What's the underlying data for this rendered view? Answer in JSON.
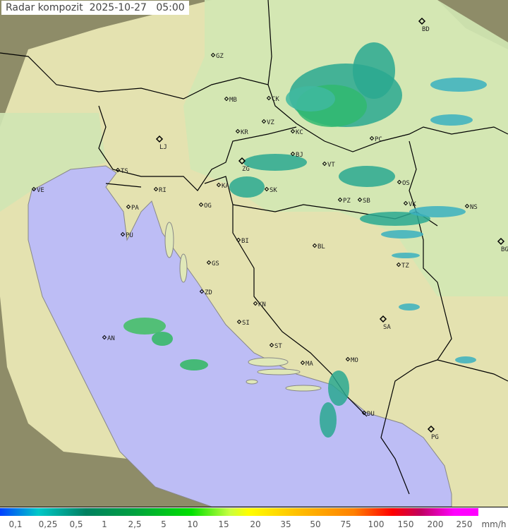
{
  "header": {
    "title": "Radar kompozit",
    "date": "2025-10-27",
    "time": "05:00"
  },
  "map": {
    "colors": {
      "sea": "#bdbdf5",
      "land": "#e6e6b0",
      "lowland": "#cfe6b0",
      "outside": "#8e8c68",
      "border": "#000000",
      "coast": "#888888"
    },
    "cities": [
      "GZ",
      "MB",
      "CK",
      "VZ",
      "KR",
      "KC",
      "LJ",
      "ZG",
      "BJ",
      "VT",
      "PC",
      "BD",
      "TS",
      "VE",
      "RI",
      "PA",
      "KA",
      "SK",
      "OG",
      "PU",
      "OS",
      "PZ",
      "SB",
      "VK",
      "NS",
      "BG",
      "BI",
      "BL",
      "TZ",
      "GS",
      "ZD",
      "KN",
      "SI",
      "SA",
      "AN",
      "ST",
      "MA",
      "MO",
      "DU",
      "PG"
    ]
  },
  "legend": {
    "ticks": [
      "0,1",
      "0,25",
      "0,5",
      "1",
      "2,5",
      "5",
      "10",
      "15",
      "20",
      "35",
      "50",
      "75",
      "100",
      "150",
      "200",
      "250"
    ],
    "unit": "mm/h"
  }
}
